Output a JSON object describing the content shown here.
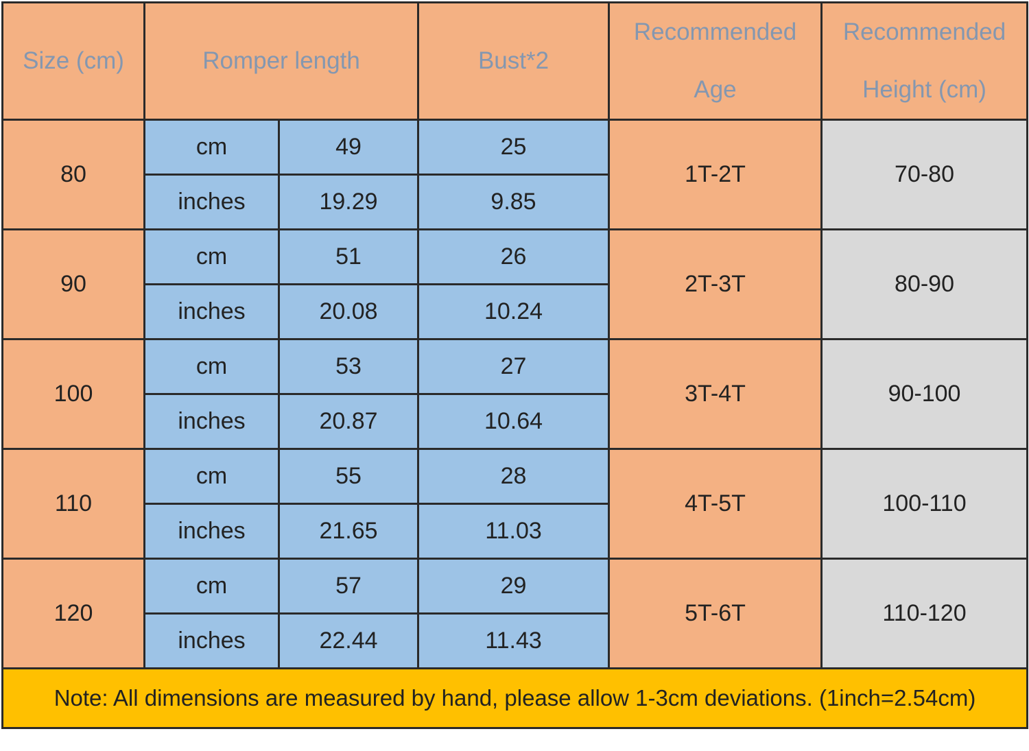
{
  "header": {
    "size": "Size (cm)",
    "romper_length": "Romper length",
    "bust": "Bust*2",
    "age_line1": "Recommended",
    "age_line2": "Age",
    "height_line1": "Recommended",
    "height_line2": "Height (cm)"
  },
  "rows": [
    {
      "size": "80",
      "cm_label": "cm",
      "inch_label": "inches",
      "length_cm": "49",
      "length_in": "19.29",
      "bust_cm": "25",
      "bust_in": "9.85",
      "age": "1T-2T",
      "height": "70-80"
    },
    {
      "size": "90",
      "cm_label": "cm",
      "inch_label": "inches",
      "length_cm": "51",
      "length_in": "20.08",
      "bust_cm": "26",
      "bust_in": "10.24",
      "age": "2T-3T",
      "height": "80-90"
    },
    {
      "size": "100",
      "cm_label": "cm",
      "inch_label": "inches",
      "length_cm": "53",
      "length_in": "20.87",
      "bust_cm": "27",
      "bust_in": "10.64",
      "age": "3T-4T",
      "height": "90-100"
    },
    {
      "size": "110",
      "cm_label": "cm",
      "inch_label": "inches",
      "length_cm": "55",
      "length_in": "21.65",
      "bust_cm": "28",
      "bust_in": "11.03",
      "age": "4T-5T",
      "height": "100-110"
    },
    {
      "size": "120",
      "cm_label": "cm",
      "inch_label": "inches",
      "length_cm": "57",
      "length_in": "22.44",
      "bust_cm": "29",
      "bust_in": "11.43",
      "age": "5T-6T",
      "height": "110-120"
    }
  ],
  "note": "Note: All dimensions are measured by hand, please allow 1-3cm deviations. (1inch=2.54cm)",
  "colors": {
    "header_bg": "#f4b183",
    "header_text": "#8497b0",
    "measure_bg": "#9dc3e6",
    "height_bg": "#d9d9d9",
    "note_bg": "#ffc000"
  }
}
